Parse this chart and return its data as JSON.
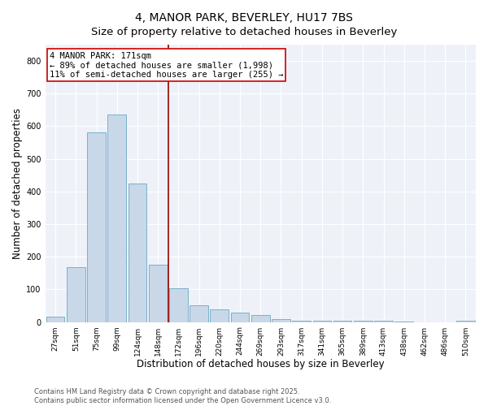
{
  "title": "4, MANOR PARK, BEVERLEY, HU17 7BS",
  "subtitle": "Size of property relative to detached houses in Beverley",
  "xlabel": "Distribution of detached houses by size in Beverley",
  "ylabel": "Number of detached properties",
  "categories": [
    "27sqm",
    "51sqm",
    "75sqm",
    "99sqm",
    "124sqm",
    "148sqm",
    "172sqm",
    "196sqm",
    "220sqm",
    "244sqm",
    "269sqm",
    "293sqm",
    "317sqm",
    "341sqm",
    "365sqm",
    "389sqm",
    "413sqm",
    "438sqm",
    "462sqm",
    "486sqm",
    "510sqm"
  ],
  "values": [
    16,
    168,
    582,
    635,
    425,
    175,
    103,
    52,
    38,
    30,
    22,
    8,
    4,
    5,
    3,
    4,
    3,
    1,
    0,
    0,
    3
  ],
  "bar_color": "#c8d8e8",
  "bar_edge_color": "#7ab0cc",
  "vline_color": "#990000",
  "annotation_text": "4 MANOR PARK: 171sqm\n← 89% of detached houses are smaller (1,998)\n11% of semi-detached houses are larger (255) →",
  "annotation_box_color": "#cc0000",
  "ylim": [
    0,
    850
  ],
  "yticks": [
    0,
    100,
    200,
    300,
    400,
    500,
    600,
    700,
    800
  ],
  "footer_line1": "Contains HM Land Registry data © Crown copyright and database right 2025.",
  "footer_line2": "Contains public sector information licensed under the Open Government Licence v3.0.",
  "bg_color": "#ffffff",
  "plot_bg_color": "#eef2f8",
  "title_fontsize": 10,
  "tick_fontsize": 6.5,
  "label_fontsize": 8.5,
  "annotation_fontsize": 7.5
}
